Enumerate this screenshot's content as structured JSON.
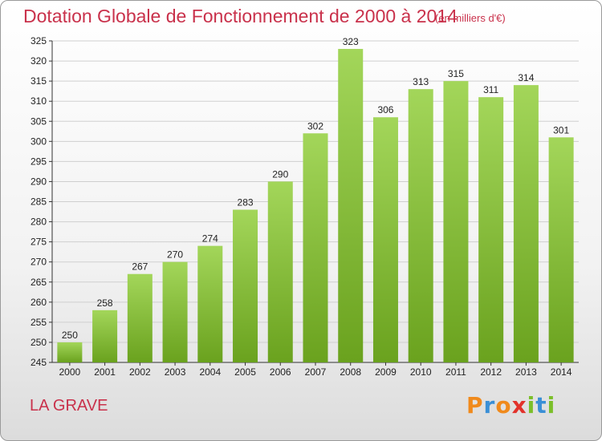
{
  "header": {
    "title": "Dotation Globale de Fonctionnement de 2000 à 2014",
    "unit": "(en milliers d'€)"
  },
  "footer": {
    "commune": "LA GRAVE",
    "logo_letters": [
      "P",
      "r",
      "o",
      "x",
      "i",
      "t",
      "i"
    ],
    "logo_colors": [
      "#f08a1c",
      "#3a8fd6",
      "#f08a1c",
      "#e2322b",
      "#7bbf2a",
      "#3a8fd6",
      "#7bbf2a"
    ]
  },
  "colors": {
    "bar_light": "#a3d65a",
    "bar_dark": "#6aa21e",
    "title": "#c9314b",
    "grid": "#cfcfcf"
  },
  "chart_data": {
    "type": "bar",
    "title": "Dotation Globale de Fonctionnement de 2000 à 2014",
    "subtitle": "(en milliers d'€)",
    "xlabel": "",
    "ylabel": "",
    "categories": [
      "2000",
      "2001",
      "2002",
      "2003",
      "2004",
      "2005",
      "2006",
      "2007",
      "2008",
      "2009",
      "2010",
      "2011",
      "2012",
      "2013",
      "2014"
    ],
    "values": [
      250,
      258,
      267,
      270,
      274,
      283,
      290,
      302,
      323,
      306,
      313,
      315,
      311,
      314,
      301
    ],
    "ylim": [
      245,
      325
    ],
    "yticks": [
      245,
      250,
      255,
      260,
      265,
      270,
      275,
      280,
      285,
      290,
      295,
      300,
      305,
      310,
      315,
      320,
      325
    ],
    "grid": true,
    "data_labels": true
  }
}
